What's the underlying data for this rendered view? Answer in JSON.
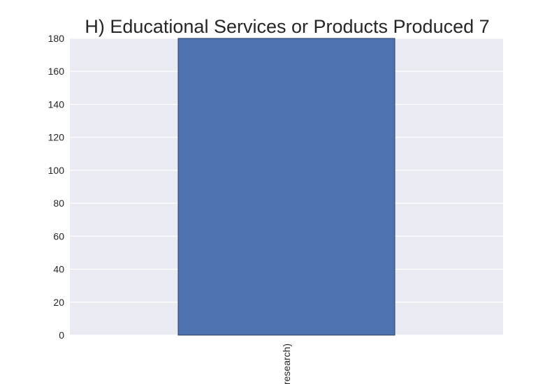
{
  "chart_data": {
    "type": "bar",
    "title": "H) Educational Services or Products Produced 7",
    "categories": [
      "research)"
    ],
    "values": [
      180
    ],
    "xlabel": "",
    "ylabel": "",
    "ylim": [
      0,
      180
    ],
    "yticks": [
      0,
      20,
      40,
      60,
      80,
      100,
      120,
      140,
      160,
      180
    ],
    "grid": true,
    "legend": "none",
    "colors": {
      "bar": "#4c72b0",
      "bar_edge": "#2c3e66",
      "plot_background": "#eaeaf2",
      "grid": "#ffffff",
      "text": "#262626"
    }
  }
}
